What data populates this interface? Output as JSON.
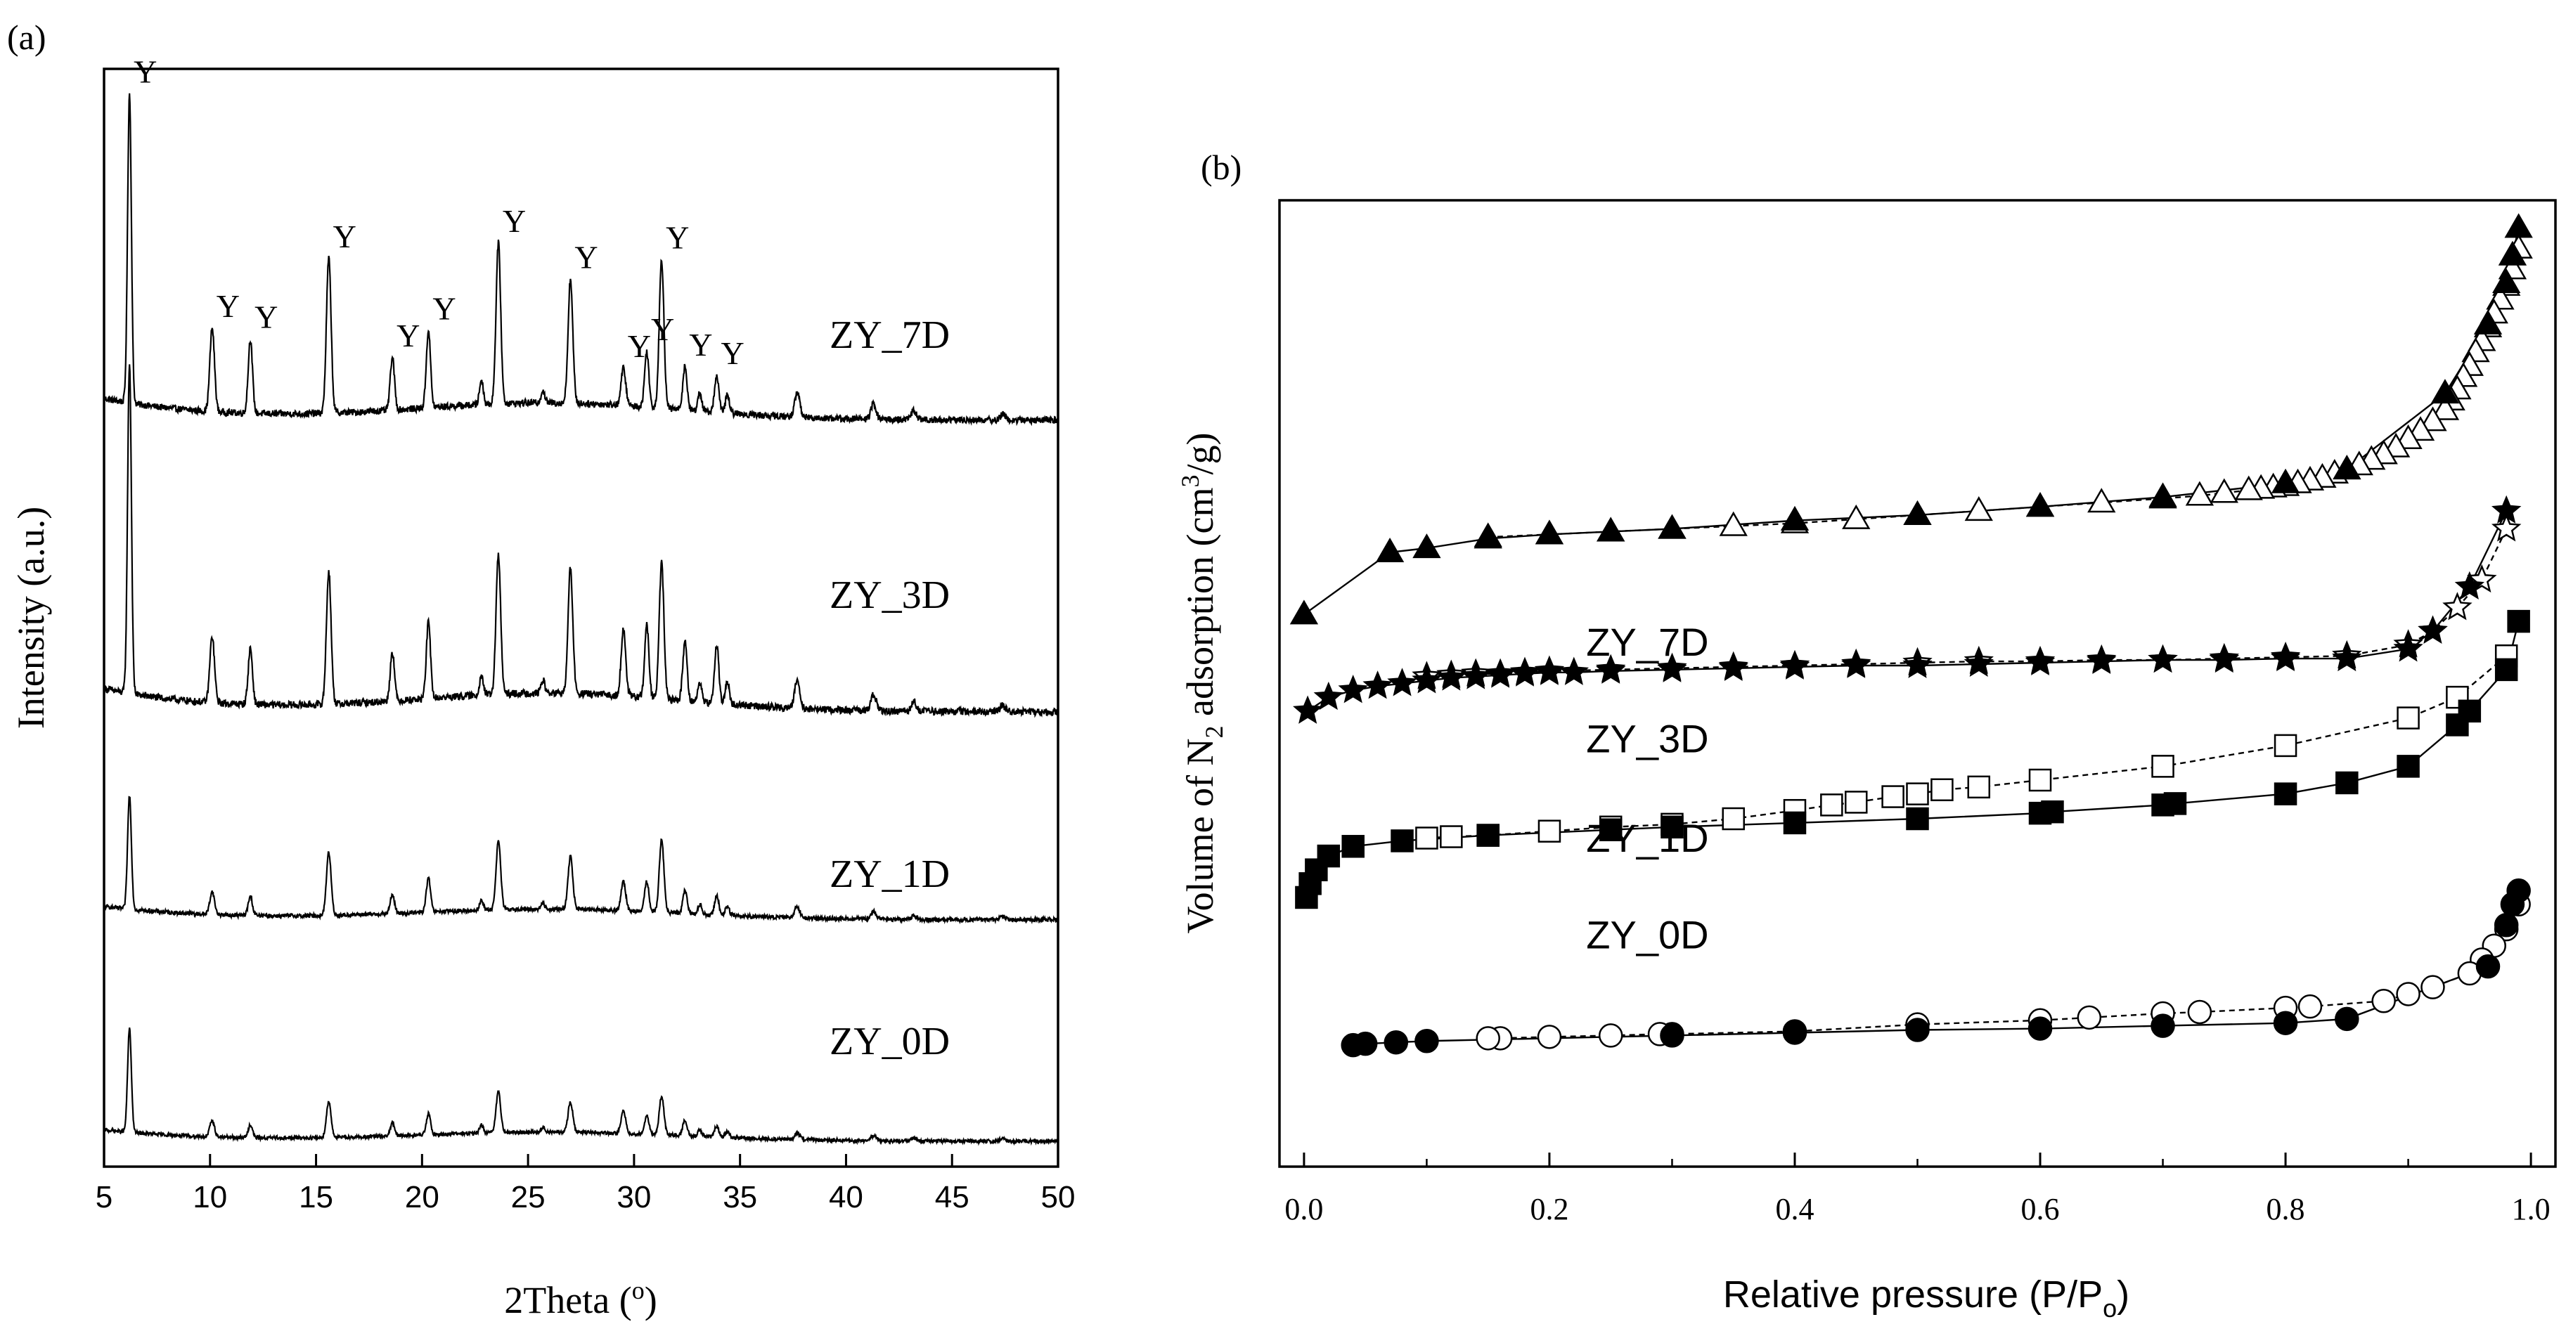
{
  "chart_data": [
    {
      "id": "a",
      "type": "line",
      "panel_label": "(a)",
      "title": "",
      "xlabel": "2Theta (°)",
      "xlabel_main": "2Theta (",
      "xlabel_deg": "o",
      "xlabel_end": ")",
      "ylabel": "Intensity (a.u.)",
      "xlim": [
        5,
        50
      ],
      "xticks": [
        5,
        10,
        15,
        20,
        25,
        30,
        35,
        40,
        45,
        50
      ],
      "xtick_labels": [
        "5",
        "10",
        "15",
        "20",
        "25",
        "30",
        "35",
        "40",
        "45",
        "50"
      ],
      "y_units": "arbitrary (stacked patterns, relative peak heights)",
      "peak_positions": [
        6.2,
        10.1,
        11.9,
        15.6,
        18.6,
        20.3,
        22.8,
        23.6,
        25.7,
        27.0,
        29.5,
        30.6,
        31.3,
        32.4,
        33.1,
        33.9,
        34.4,
        37.7,
        41.3,
        43.2,
        47.4
      ],
      "series": [
        {
          "name": "ZY_7D",
          "offset": 3,
          "peak_heights": [
            1.0,
            0.27,
            0.24,
            0.5,
            0.17,
            0.25,
            0.08,
            0.52,
            0.04,
            0.4,
            0.12,
            0.18,
            0.48,
            0.14,
            0.06,
            0.12,
            0.06,
            0.08,
            0.05,
            0.03,
            0.02
          ]
        },
        {
          "name": "ZY_3D",
          "offset": 2,
          "peak_heights": [
            1.0,
            0.2,
            0.17,
            0.4,
            0.15,
            0.23,
            0.06,
            0.42,
            0.04,
            0.38,
            0.2,
            0.22,
            0.41,
            0.18,
            0.06,
            0.18,
            0.07,
            0.09,
            0.05,
            0.03,
            0.02
          ]
        },
        {
          "name": "ZY_1D",
          "offset": 1,
          "peak_heights": [
            0.6,
            0.12,
            0.1,
            0.33,
            0.1,
            0.18,
            0.05,
            0.36,
            0.03,
            0.28,
            0.15,
            0.16,
            0.38,
            0.12,
            0.05,
            0.1,
            0.05,
            0.06,
            0.04,
            0.02,
            0.02
          ]
        },
        {
          "name": "ZY_0D",
          "offset": 0,
          "peak_heights": [
            0.64,
            0.1,
            0.08,
            0.22,
            0.08,
            0.13,
            0.05,
            0.25,
            0.03,
            0.19,
            0.14,
            0.12,
            0.24,
            0.1,
            0.04,
            0.07,
            0.04,
            0.04,
            0.03,
            0.02,
            0.02
          ]
        }
      ],
      "annotations": [
        {
          "text": "Y",
          "x": 6.2
        },
        {
          "text": "Y",
          "x": 10.1
        },
        {
          "text": "Y",
          "x": 11.9
        },
        {
          "text": "Y",
          "x": 15.6
        },
        {
          "text": "Y",
          "x": 18.6
        },
        {
          "text": "Y",
          "x": 20.3
        },
        {
          "text": "Y",
          "x": 23.6
        },
        {
          "text": "Y",
          "x": 27.0
        },
        {
          "text": "Y",
          "x": 29.5
        },
        {
          "text": "Y",
          "x": 30.6
        },
        {
          "text": "Y",
          "x": 31.3
        },
        {
          "text": "Y",
          "x": 32.4
        },
        {
          "text": "Y",
          "x": 33.9
        }
      ]
    },
    {
      "id": "b",
      "type": "scatter",
      "panel_label": "(b)",
      "title": "",
      "xlabel": "Relative pressure (P/Po)",
      "xlabel_main": "Relative pressure (P/P",
      "xlabel_sub": "o",
      "xlabel_end": ")",
      "ylabel": "Volume of N2 adsorption (cm3/g)",
      "ylabel_part1": "Volume of N",
      "ylabel_sub": "2",
      "ylabel_part2": " adsorption (cm",
      "ylabel_sup": "3",
      "ylabel_part3": "/g)",
      "xlim": [
        -0.02,
        1.02
      ],
      "ylim": [
        0,
        700
      ],
      "xticks": [
        0.0,
        0.2,
        0.4,
        0.6,
        0.8,
        1.0
      ],
      "xtick_labels": [
        "0.0",
        "0.2",
        "0.4",
        "0.6",
        "0.8",
        "1.0"
      ],
      "y_units": "arbitrary (curves offset vertically)",
      "legend_position": "none (curves labelled inline)",
      "series": [
        {
          "name": "ZY_7D",
          "label_at": {
            "x": 0.23,
            "y": 370
          },
          "marker": "triangle",
          "adsorption": {
            "x": [
              0.0,
              0.07,
              0.1,
              0.15,
              0.2,
              0.25,
              0.3,
              0.4,
              0.5,
              0.6,
              0.7,
              0.8,
              0.85,
              0.93,
              0.965,
              0.98,
              0.985,
              0.99
            ],
            "y": [
              400,
              445,
              448,
              455,
              458,
              460,
              462,
              468,
              472,
              478,
              485,
              495,
              505,
              560,
              610,
              640,
              660,
              680
            ]
          },
          "desorption": {
            "x": [
              0.99,
              0.985,
              0.98,
              0.975,
              0.97,
              0.965,
              0.96,
              0.955,
              0.95,
              0.945,
              0.94,
              0.935,
              0.93,
              0.92,
              0.91,
              0.9,
              0.89,
              0.88,
              0.87,
              0.86,
              0.85,
              0.84,
              0.83,
              0.82,
              0.81,
              0.8,
              0.79,
              0.78,
              0.77,
              0.75,
              0.73,
              0.7,
              0.65,
              0.6,
              0.55,
              0.5,
              0.45,
              0.4,
              0.35,
              0.3,
              0.25,
              0.2,
              0.15
            ],
            "y": [
              665,
              650,
              638,
              628,
              618,
              608,
              598,
              590,
              580,
              572,
              563,
              555,
              548,
              540,
              533,
              527,
              521,
              516,
              512,
              508,
              505,
              502,
              499,
              497,
              495,
              493,
              492,
              491,
              490,
              488,
              486,
              484,
              481,
              478,
              475,
              472,
              469,
              466,
              464,
              462,
              460,
              458,
              456
            ]
          }
        },
        {
          "name": "ZY_3D",
          "label_at": {
            "x": 0.23,
            "y": 300
          },
          "marker": "star",
          "adsorption": {
            "x": [
              0.003,
              0.02,
              0.04,
              0.06,
              0.08,
              0.1,
              0.12,
              0.14,
              0.16,
              0.18,
              0.2,
              0.22,
              0.25,
              0.3,
              0.35,
              0.4,
              0.45,
              0.5,
              0.55,
              0.6,
              0.65,
              0.7,
              0.75,
              0.8,
              0.85,
              0.9,
              0.92,
              0.95,
              0.98
            ],
            "y": [
              330,
              340,
              345,
              348,
              350,
              352,
              354,
              355,
              356,
              357,
              358,
              358,
              359,
              360,
              361,
              362,
              363,
              363,
              364,
              365,
              366,
              367,
              367,
              368,
              368,
              375,
              388,
              420,
              475
            ]
          },
          "desorption": {
            "x": [
              0.98,
              0.96,
              0.94,
              0.92,
              0.9,
              0.85,
              0.8,
              0.75,
              0.7,
              0.65,
              0.6,
              0.55,
              0.5,
              0.45,
              0.4,
              0.35,
              0.3,
              0.25,
              0.2,
              0.18,
              0.16,
              0.14,
              0.12,
              0.1
            ],
            "y": [
              462,
              425,
              405,
              388,
              378,
              370,
              369,
              368,
              367,
              367,
              366,
              366,
              365,
              364,
              363,
              362,
              361,
              360,
              359,
              358,
              357,
              357,
              356,
              355
            ]
          }
        },
        {
          "name": "ZY_1D",
          "label_at": {
            "x": 0.23,
            "y": 228
          },
          "marker": "square",
          "adsorption": {
            "x": [
              0.002,
              0.005,
              0.01,
              0.02,
              0.04,
              0.08,
              0.15,
              0.25,
              0.3,
              0.4,
              0.5,
              0.6,
              0.61,
              0.7,
              0.71,
              0.8,
              0.85,
              0.9,
              0.94,
              0.95,
              0.98,
              0.99
            ],
            "y": [
              195,
              205,
              215,
              225,
              232,
              236,
              240,
              244,
              246,
              249,
              252,
              256,
              257,
              262,
              263,
              270,
              278,
              290,
              320,
              330,
              360,
              395
            ]
          },
          "desorption": {
            "x": [
              0.98,
              0.94,
              0.9,
              0.8,
              0.7,
              0.6,
              0.55,
              0.52,
              0.5,
              0.48,
              0.45,
              0.43,
              0.4,
              0.35,
              0.3,
              0.25,
              0.2,
              0.15,
              0.12,
              0.1
            ],
            "y": [
              370,
              340,
              325,
              305,
              290,
              280,
              275,
              273,
              270,
              268,
              264,
              262,
              258,
              252,
              248,
              246,
              243,
              240,
              239,
              238
            ]
          }
        },
        {
          "name": "ZY_0D",
          "label_at": {
            "x": 0.23,
            "y": 158
          },
          "marker": "circle",
          "adsorption": {
            "x": [
              0.04,
              0.05,
              0.075,
              0.1,
              0.3,
              0.4,
              0.5,
              0.6,
              0.7,
              0.8,
              0.85,
              0.965,
              0.98,
              0.985,
              0.99
            ],
            "y": [
              88,
              89,
              90,
              91,
              95,
              97,
              99,
              100,
              102,
              104,
              107,
              145,
              175,
              190,
              200
            ]
          },
          "desorption": {
            "x": [
              0.99,
              0.98,
              0.97,
              0.96,
              0.95,
              0.92,
              0.9,
              0.88,
              0.82,
              0.8,
              0.73,
              0.7,
              0.64,
              0.6,
              0.5,
              0.4,
              0.3,
              0.29,
              0.25,
              0.2,
              0.16,
              0.15
            ],
            "y": [
              190,
              172,
              160,
              150,
              140,
              130,
              125,
              120,
              116,
              115,
              112,
              111,
              108,
              106,
              103,
              98,
              96,
              96,
              95,
              94,
              93,
              93
            ]
          }
        }
      ]
    }
  ]
}
